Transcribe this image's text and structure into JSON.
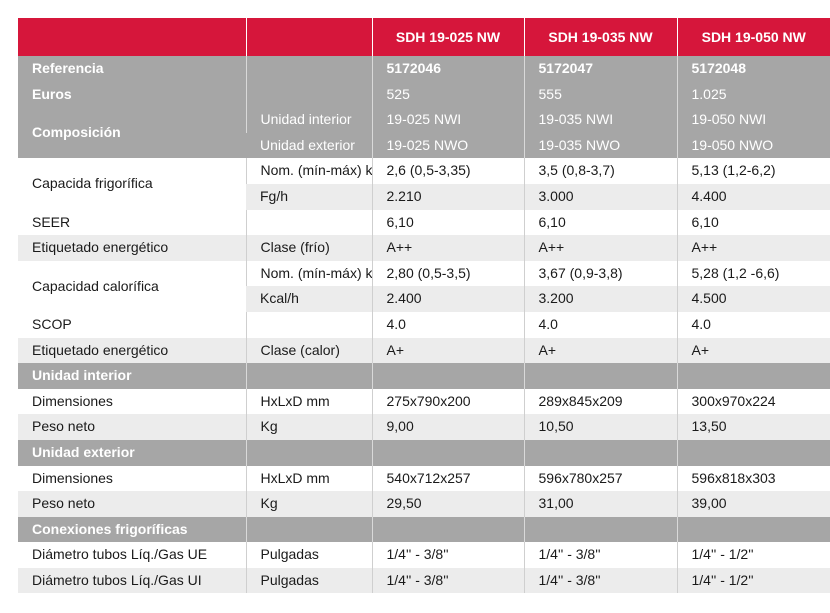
{
  "header": {
    "models": [
      "SDH 19-025 NW",
      "SDH 19-035 NW",
      "SDH 19-050 NW"
    ]
  },
  "general": {
    "referencia_label": "Referencia",
    "referencia": [
      "5172046",
      "5172047",
      "5172048"
    ],
    "euros_label": "Euros",
    "euros": [
      "525",
      "555",
      "1.025"
    ],
    "composicion_label": "Composición",
    "interior_label": "Unidad interior",
    "interior": [
      "19-025 NWI",
      "19-035 NWI",
      "19-050 NWI"
    ],
    "exterior_label": "Unidad exterior",
    "exterior": [
      "19-025 NWO",
      "19-035 NWO",
      "19-050 NWO"
    ]
  },
  "cooling": {
    "label": "Capacida frigorífica",
    "nom_unit": "Nom. (mín-máx) kW",
    "nom": [
      "2,6 (0,5-3,35)",
      "3,5 (0,8-3,7)",
      "5,13 (1,2-6,2)"
    ],
    "fg_unit": "Fg/h",
    "fg": [
      "2.210",
      "3.000",
      "4.400"
    ],
    "seer_label": "SEER",
    "seer": [
      "6,10",
      "6,10",
      "6,10"
    ],
    "etiq_label": "Etiquetado energético",
    "etiq_unit": "Clase (frío)",
    "etiq": [
      "A++",
      "A++",
      "A++"
    ]
  },
  "heating": {
    "label": "Capacidad calorífica",
    "nom_unit": "Nom. (mín-máx) kW",
    "nom": [
      "2,80 (0,5-3,5)",
      "3,67 (0,9-3,8)",
      "5,28 (1,2 -6,6)"
    ],
    "kcal_unit": "Kcal/h",
    "kcal": [
      "2.400",
      "3.200",
      "4.500"
    ],
    "scop_label": "SCOP",
    "scop": [
      "4.0",
      "4.0",
      "4.0"
    ],
    "etiq_label": "Etiquetado energético",
    "etiq_unit": "Clase (calor)",
    "etiq": [
      "A+",
      "A+",
      "A+"
    ]
  },
  "interior_unit": {
    "section": "Unidad interior",
    "dim_label": "Dimensiones",
    "dim_unit": "HxLxD mm",
    "dim": [
      "275x790x200",
      "289x845x209",
      "300x970x224"
    ],
    "peso_label": "Peso neto",
    "peso_unit": "Kg",
    "peso": [
      "9,00",
      "10,50",
      "13,50"
    ]
  },
  "exterior_unit": {
    "section": "Unidad exterior",
    "dim_label": "Dimensiones",
    "dim_unit": "HxLxD mm",
    "dim": [
      "540x712x257",
      "596x780x257",
      "596x818x303"
    ],
    "peso_label": "Peso neto",
    "peso_unit": "Kg",
    "peso": [
      "29,50",
      "31,00",
      "39,00"
    ]
  },
  "connections": {
    "section": "Conexiones frigoríficas",
    "ue_label": "Diámetro tubos Líq./Gas UE",
    "ue_unit": "Pulgadas",
    "ue": [
      "1/4'' - 3/8''",
      "1/4'' - 3/8''",
      "1/4'' - 1/2''"
    ],
    "ui_label": "Diámetro tubos Líq./Gas UI",
    "ui_unit": "Pulgadas",
    "ui": [
      "1/4'' - 3/8''",
      "1/4'' - 3/8''",
      "1/4'' - 1/2''"
    ]
  }
}
